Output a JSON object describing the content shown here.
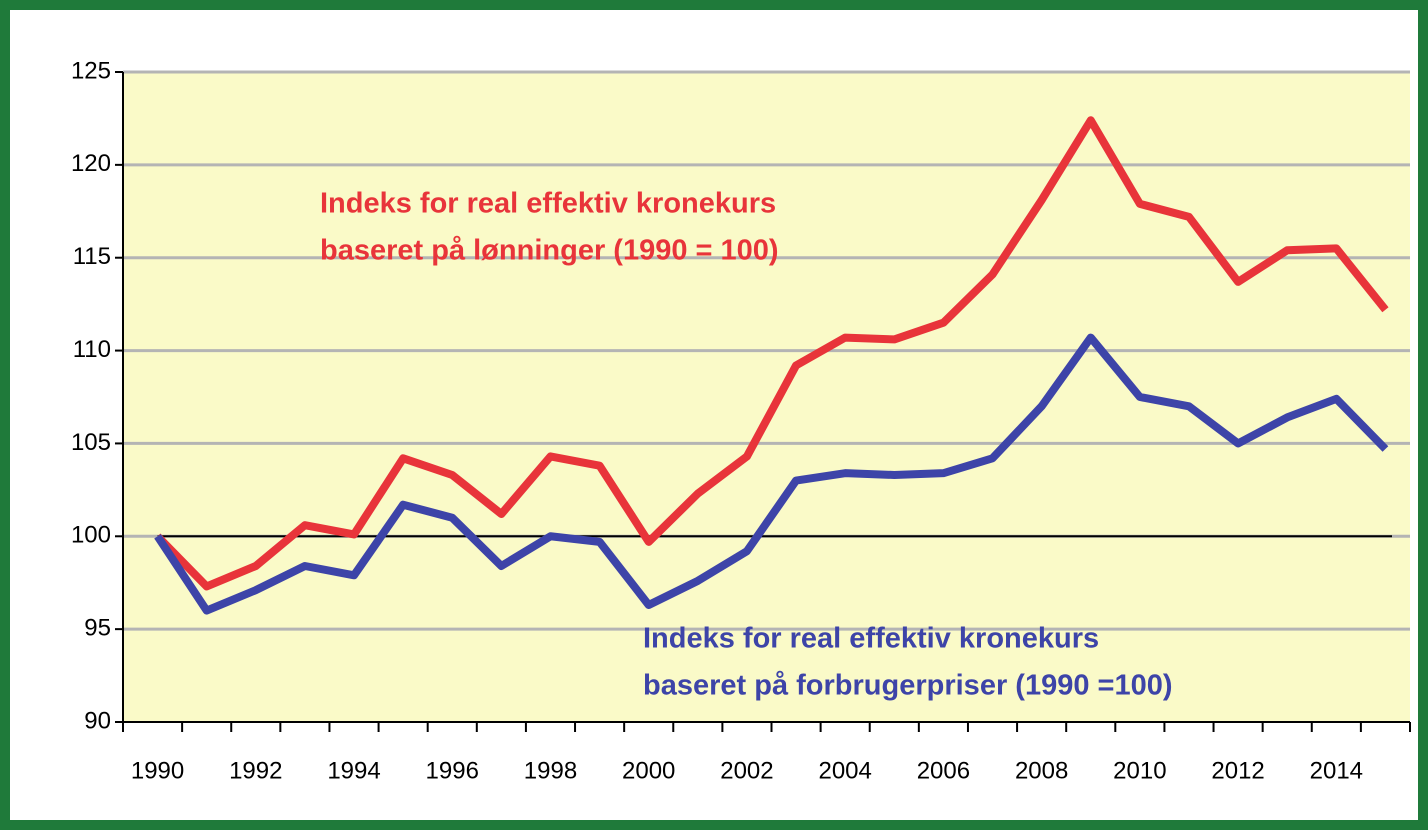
{
  "chart_data": {
    "type": "line",
    "categories": [
      "1990",
      null,
      "1992",
      null,
      "1994",
      null,
      "1996",
      null,
      "1998",
      null,
      "2000",
      null,
      "2002",
      null,
      "2004",
      null,
      "2006",
      null,
      "2008",
      null,
      "2010",
      null,
      "2012",
      null,
      "2014",
      null
    ],
    "series": [
      {
        "color": "#e8343a",
        "values": [
          100,
          97.3,
          98.4,
          100.6,
          100.1,
          104.2,
          103.3,
          101.2,
          104.3,
          103.8,
          99.7,
          102.3,
          104.3,
          109.2,
          110.7,
          110.6,
          111.5,
          114.1,
          118.1,
          122.4,
          117.9,
          117.2,
          113.7,
          115.4,
          115.5,
          112.2
        ]
      },
      {
        "color": "#3d44a8",
        "values": [
          100,
          96.0,
          97.1,
          98.4,
          97.9,
          101.7,
          101.0,
          98.4,
          100.0,
          99.7,
          96.3,
          97.6,
          99.2,
          103.0,
          103.4,
          103.3,
          103.4,
          104.2,
          107.0,
          110.7,
          107.5,
          107.0,
          105.0,
          106.4,
          107.4,
          104.7
        ]
      }
    ],
    "annotations": [
      {
        "lines": [
          "Indeks for real effektiv kronekurs",
          "baseret på lønninger (1990 = 100)"
        ],
        "color": "#e8343a"
      },
      {
        "lines": [
          "Indeks for real effektiv kronekurs",
          "baseret på forbrugerpriser (1990 =100)"
        ],
        "color": "#3d44a8"
      }
    ],
    "ylim": [
      90,
      125
    ],
    "yticks": [
      90,
      95,
      100,
      105,
      110,
      115,
      120,
      125
    ],
    "reference_line": 100,
    "grid": true
  }
}
